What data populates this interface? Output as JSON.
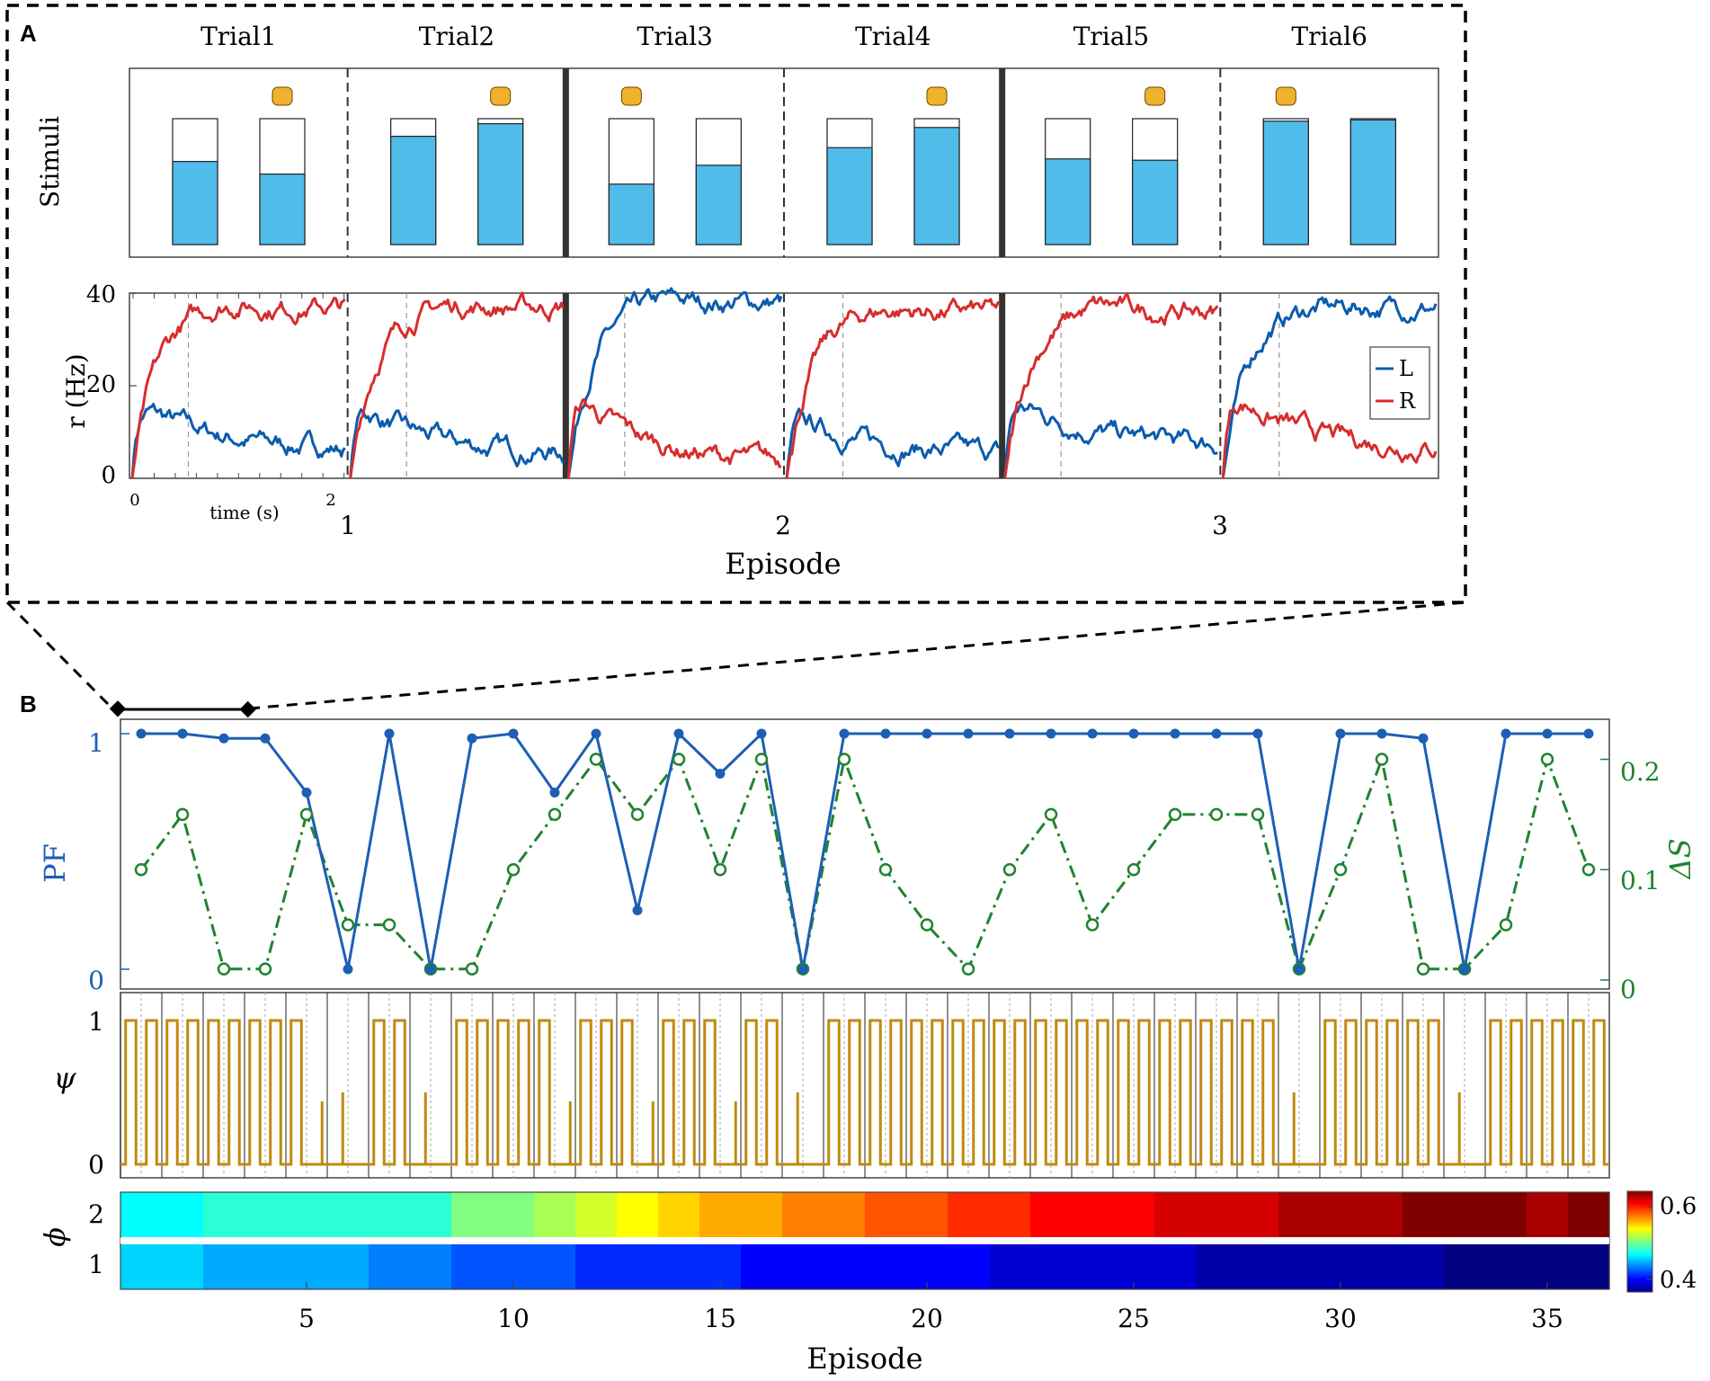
{
  "panel_labels": {
    "a": "A",
    "b": "B"
  },
  "colors": {
    "L": "#0b5cad",
    "R": "#d62d2d",
    "pf": "#1d5fb5",
    "ds": "#20832f",
    "psi": "#c08a10",
    "bar": "#4fbcea",
    "disk": "#f0b12c",
    "dash": "#999999"
  },
  "chart_data": [
    {
      "id": "stimuli",
      "type": "bar",
      "ylabel": "Stimuli",
      "trials": [
        "Trial1",
        "Trial2",
        "Trial3",
        "Trial4",
        "Trial5",
        "Trial6"
      ],
      "bottle_fill_left": [
        0.66,
        0.86,
        0.48,
        0.77,
        0.68,
        0.98
      ],
      "bottle_fill_right": [
        0.56,
        0.96,
        0.63,
        0.93,
        0.67,
        0.99
      ],
      "reward_side": [
        "R",
        "R",
        "L",
        "R",
        "R",
        "L"
      ],
      "separators": [
        "dash",
        "solid",
        "dash",
        "solid",
        "dash"
      ]
    },
    {
      "id": "rates",
      "type": "line",
      "ylabel": "r (Hz)",
      "xlabel": "Episode",
      "ylim": [
        0,
        40
      ],
      "yticks": [
        "0",
        "20",
        "40"
      ],
      "inset_xticks": [
        "0",
        "2"
      ],
      "inset_xlabel": "time (s)",
      "episode_ticks": [
        "1",
        "2",
        "3"
      ],
      "series": [
        {
          "name": "L",
          "plateau_per_trial": [
            6,
            5,
            38,
            5,
            7,
            37
          ],
          "peak_per_trial": [
            17,
            17,
            40,
            14,
            18,
            38
          ]
        },
        {
          "name": "R",
          "plateau_per_trial": [
            37,
            37,
            3,
            36,
            36,
            6
          ],
          "peak_per_trial": [
            40,
            39,
            20,
            38,
            40,
            20
          ]
        }
      ]
    },
    {
      "id": "pf_ds",
      "type": "line",
      "ylabel": "PF",
      "y2label": "ΔS",
      "ylim": [
        0,
        1
      ],
      "y2lim": [
        0,
        0.22
      ],
      "yticks": [
        "0",
        "1"
      ],
      "y2ticks": [
        "0",
        "0.1",
        "0.2"
      ],
      "x": [
        1,
        2,
        3,
        4,
        5,
        6,
        7,
        8,
        9,
        10,
        11,
        12,
        13,
        14,
        15,
        16,
        17,
        18,
        19,
        20,
        21,
        22,
        23,
        24,
        25,
        26,
        27,
        28,
        29,
        30,
        31,
        32,
        33,
        34,
        35,
        36
      ],
      "series": [
        {
          "name": "PF",
          "values": [
            1,
            1,
            0.98,
            0.98,
            0.75,
            0,
            1,
            0,
            0.98,
            1,
            0.75,
            1,
            0.25,
            1,
            0.83,
            1,
            0,
            1,
            1,
            1,
            1,
            1,
            1,
            1,
            1,
            1,
            1,
            1,
            0,
            1,
            1,
            0.98,
            0,
            1,
            1,
            1
          ]
        },
        {
          "name": "ΔS",
          "values": [
            0.1,
            0.15,
            0.01,
            0.01,
            0.15,
            0.05,
            0.05,
            0.01,
            0.01,
            0.1,
            0.15,
            0.2,
            0.15,
            0.2,
            0.1,
            0.2,
            0.01,
            0.2,
            0.1,
            0.05,
            0.01,
            0.1,
            0.15,
            0.05,
            0.1,
            0.15,
            0.15,
            0.15,
            0.01,
            0.1,
            0.2,
            0.01,
            0.01,
            0.05,
            0.2,
            0.1
          ]
        }
      ]
    },
    {
      "id": "psi",
      "type": "line",
      "ylabel": "ψ",
      "ylim": [
        0,
        1
      ],
      "yticks": [
        "0",
        "1"
      ],
      "correct_runs": [
        18,
        22,
        26,
        29,
        33
      ]
    },
    {
      "id": "phi",
      "type": "heatmap",
      "ylabel": "ϕ",
      "rows": [
        "2",
        "1"
      ],
      "xlabel": "Episode",
      "xticks": [
        "5",
        "10",
        "15",
        "20",
        "25",
        "30",
        "35"
      ],
      "colorbar_ticks": [
        "0.4",
        "0.6"
      ],
      "clim": [
        0.38,
        0.62
      ],
      "phi2": [
        0.47,
        0.47,
        0.48,
        0.48,
        0.48,
        0.48,
        0.48,
        0.48,
        0.5,
        0.5,
        0.51,
        0.52,
        0.53,
        0.54,
        0.55,
        0.55,
        0.56,
        0.56,
        0.57,
        0.57,
        0.58,
        0.58,
        0.59,
        0.59,
        0.59,
        0.6,
        0.6,
        0.6,
        0.61,
        0.61,
        0.61,
        0.62,
        0.62,
        0.62,
        0.61,
        0.62
      ],
      "phi1": [
        0.46,
        0.46,
        0.45,
        0.45,
        0.45,
        0.45,
        0.44,
        0.44,
        0.43,
        0.43,
        0.43,
        0.42,
        0.42,
        0.42,
        0.42,
        0.41,
        0.41,
        0.41,
        0.41,
        0.41,
        0.41,
        0.4,
        0.4,
        0.4,
        0.4,
        0.4,
        0.39,
        0.39,
        0.39,
        0.39,
        0.39,
        0.39,
        0.38,
        0.38,
        0.38,
        0.38
      ]
    }
  ]
}
